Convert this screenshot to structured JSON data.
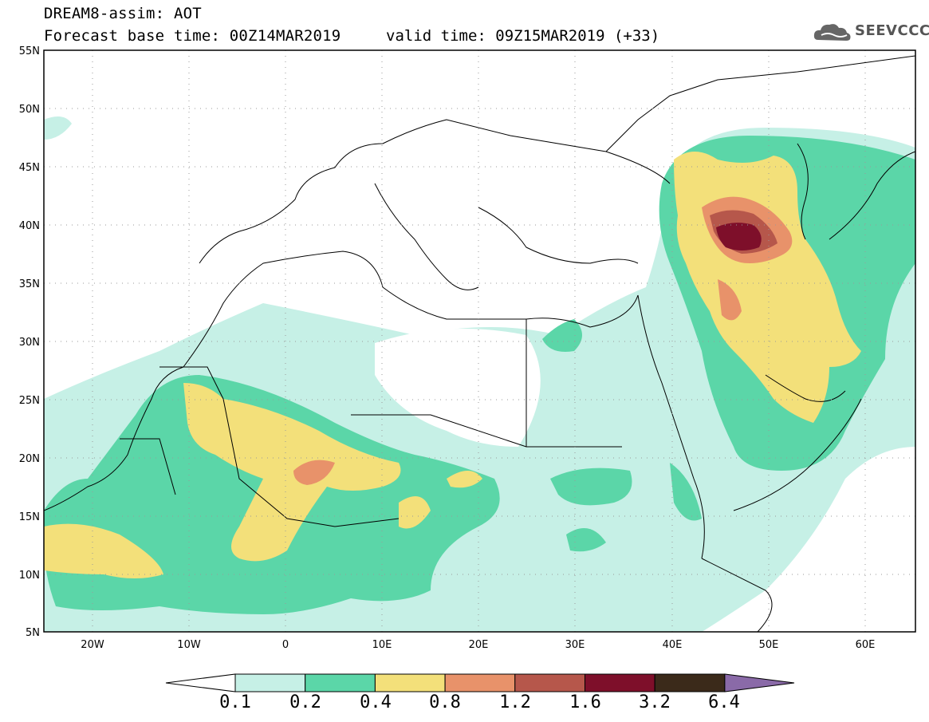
{
  "header": {
    "product": "DREAM8-assim: AOT",
    "forecast_base": "Forecast base time: 00Z14MAR2019",
    "valid_time": "valid time: 09Z15MAR2019 (+33)"
  },
  "logo": {
    "text": "SEEVCCC",
    "icon": "cloud-icon"
  },
  "map": {
    "projection": "lat-lon",
    "lon_range": [
      -25,
      65
    ],
    "lat_range": [
      5,
      55
    ],
    "lat_ticks": [
      "5N",
      "10N",
      "15N",
      "20N",
      "25N",
      "30N",
      "35N",
      "40N",
      "45N",
      "50N",
      "55N"
    ],
    "lon_ticks": [
      "20W",
      "10W",
      "0",
      "10E",
      "20E",
      "30E",
      "40E",
      "50E",
      "60E"
    ],
    "grid": true
  },
  "legend": {
    "levels": [
      "0.1",
      "0.2",
      "0.4",
      "0.8",
      "1.2",
      "1.6",
      "3.2",
      "6.4"
    ],
    "colors": [
      "#ffffff",
      "#c6f0e6",
      "#5bd6a8",
      "#f3e07a",
      "#e8926a",
      "#b6574b",
      "#7e0f2a",
      "#3b2a1a",
      "#8a6aa8"
    ]
  }
}
